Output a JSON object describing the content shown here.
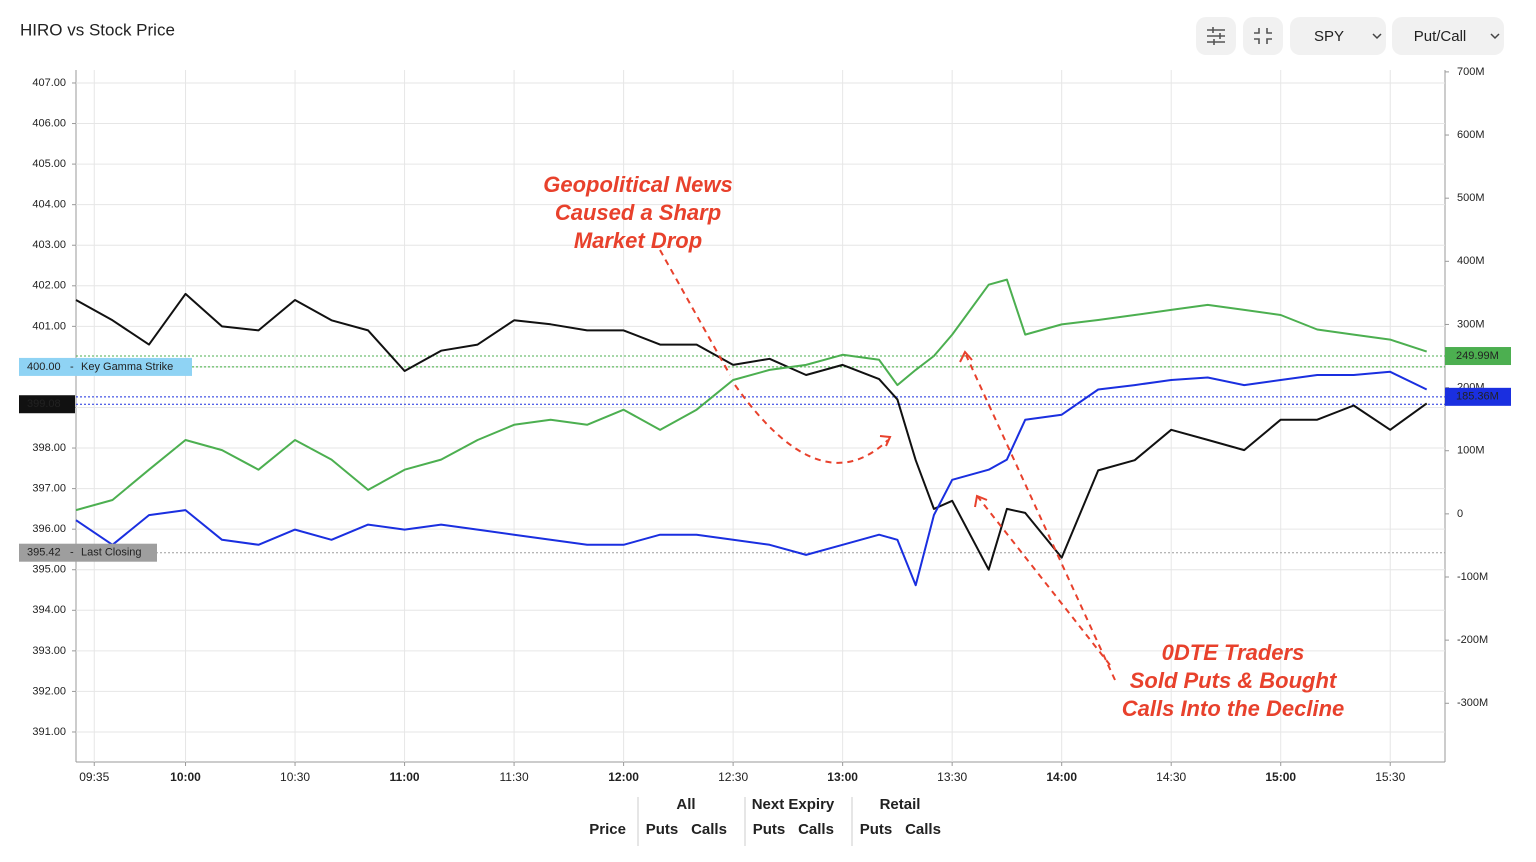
{
  "chart_data": {
    "type": "line",
    "title": "HIRO vs Stock Price",
    "controls": {
      "ticker": "SPY",
      "mode": "Put/Call"
    },
    "x": [
      "09:30",
      "09:40",
      "09:50",
      "10:00",
      "10:10",
      "10:20",
      "10:30",
      "10:40",
      "10:50",
      "11:00",
      "11:10",
      "11:20",
      "11:30",
      "11:40",
      "11:50",
      "12:00",
      "12:10",
      "12:20",
      "12:30",
      "12:40",
      "12:50",
      "13:00",
      "13:10",
      "13:15",
      "13:20",
      "13:25",
      "13:30",
      "13:40",
      "13:45",
      "13:50",
      "14:00",
      "14:10",
      "14:20",
      "14:30",
      "14:40",
      "14:50",
      "15:00",
      "15:10",
      "15:20",
      "15:30",
      "15:40"
    ],
    "xlim": [
      "09:30",
      "15:45"
    ],
    "xticks": [
      "09:35",
      "10:00",
      "10:30",
      "11:00",
      "11:30",
      "12:00",
      "12:30",
      "13:00",
      "13:30",
      "14:00",
      "14:30",
      "15:00",
      "15:30"
    ],
    "bold_xticks": [
      "10:00",
      "11:00",
      "12:00",
      "13:00",
      "14:00",
      "15:00"
    ],
    "ylim": [
      390.26,
      407.32
    ],
    "yticks": [
      {
        "value": 391,
        "label": "391.00"
      },
      {
        "value": 392,
        "label": "392.00"
      },
      {
        "value": 393,
        "label": "393.00"
      },
      {
        "value": 394,
        "label": "394.00"
      },
      {
        "value": 395,
        "label": "395.00"
      },
      {
        "value": 396,
        "label": "396.00"
      },
      {
        "value": 397,
        "label": "397.00"
      },
      {
        "value": 398,
        "label": "398.00"
      },
      {
        "value": 399,
        "label": "399.00"
      },
      {
        "value": 400,
        "label": "400.00"
      },
      {
        "value": 401,
        "label": "401.00"
      },
      {
        "value": 402,
        "label": "402.00"
      },
      {
        "value": 403,
        "label": "403.00"
      },
      {
        "value": 404,
        "label": "404.00"
      },
      {
        "value": 405,
        "label": "405.00"
      },
      {
        "value": 406,
        "label": "406.00"
      },
      {
        "value": 407,
        "label": "407.00"
      }
    ],
    "y2lim": [
      -393,
      703
    ],
    "y2ticks": [
      {
        "value": -300,
        "label": "-300M"
      },
      {
        "value": -200,
        "label": "-200M"
      },
      {
        "value": -100,
        "label": "-100M"
      },
      0,
      {
        "value": 100,
        "label": "100M"
      },
      {
        "value": 200,
        "label": "200M"
      },
      {
        "value": 300,
        "label": "300M"
      },
      {
        "value": 400,
        "label": "400M"
      },
      {
        "value": 500,
        "label": "500M"
      },
      {
        "value": 600,
        "label": "600M"
      },
      {
        "value": 700,
        "label": "700M"
      }
    ],
    "grid": true,
    "series": [
      {
        "name": "Price",
        "color": "#111111",
        "values": [
          401.65,
          401.15,
          400.55,
          401.8,
          401.0,
          400.9,
          401.65,
          401.15,
          400.9,
          399.9,
          400.4,
          400.55,
          401.15,
          401.05,
          400.9,
          400.9,
          400.55,
          400.55,
          400.05,
          400.2,
          399.8,
          400.05,
          399.7,
          399.2,
          397.7,
          396.5,
          396.7,
          395.0,
          396.5,
          396.4,
          395.3,
          397.45,
          397.7,
          398.45,
          398.2,
          397.95,
          398.7,
          398.7,
          399.05,
          398.45,
          399.1
        ]
      },
      {
        "name": "Puts",
        "color": "#1a2fe0",
        "axis": "y2",
        "values": [
          -10,
          -49,
          -2,
          6,
          -41,
          -49,
          -25,
          -41,
          -17,
          -25,
          -17,
          -25,
          -33,
          -41,
          -49,
          -49,
          -33,
          -33,
          -41,
          -49,
          -65,
          -49,
          -33,
          -41,
          -113,
          -2,
          54,
          70,
          86,
          149,
          157,
          197,
          204,
          212,
          216,
          204,
          212,
          220,
          220,
          225,
          197
        ]
      },
      {
        "name": "Calls",
        "color": "#4caf50",
        "axis": "y2",
        "values": [
          6,
          22,
          70,
          117,
          101,
          70,
          117,
          86,
          38,
          70,
          86,
          117,
          141,
          149,
          141,
          165,
          133,
          165,
          212,
          228,
          236,
          252,
          244,
          204,
          228,
          250,
          284,
          363,
          371,
          284,
          300,
          307,
          315,
          323,
          331,
          323,
          315,
          292,
          284,
          276,
          257
        ]
      }
    ],
    "levels": [
      {
        "value": 400,
        "label": "400.00",
        "name": "Key Gamma Strike",
        "color": "#8fd3f4",
        "line": "#3fae3f"
      },
      {
        "value": 399.08,
        "label": "399.08",
        "color": "#111111",
        "line": "#1a2fe0"
      },
      {
        "value": 395.42,
        "label": "395.42",
        "name": "Last Closing",
        "color": "#9e9e9e",
        "line": "#9e9e9e"
      }
    ],
    "right_levels": [
      {
        "value": 249.99,
        "label": "249.99M",
        "color": "#4caf50"
      },
      {
        "value": 185.36,
        "label": "185.36M",
        "color": "#1a2fe0"
      }
    ],
    "annotations": [
      {
        "lines": [
          "Geopolitical News",
          "Caused a Sharp",
          "Market Drop"
        ]
      },
      {
        "lines": [
          "0DTE Traders",
          "Sold Puts & Bought",
          "Calls Into the Decline"
        ]
      }
    ],
    "legend": {
      "groups": [
        {
          "name": "All",
          "items": [
            {
              "name": "Puts",
              "color": "#4a7fe0"
            },
            {
              "name": "Calls",
              "color": "#e07a3a"
            }
          ]
        },
        {
          "name": "Next Expiry"
        },
        {
          "name": "Retail",
          "items": [
            {
              "name": "Puts",
              "color": "#9b2c9b"
            },
            {
              "name": "Calls",
              "color": "#d9a640"
            }
          ]
        }
      ]
    }
  }
}
